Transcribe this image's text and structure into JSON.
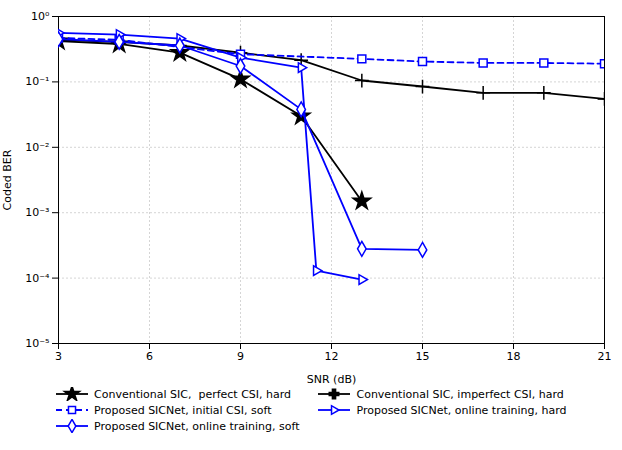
{
  "chart_data": {
    "type": "line",
    "xlabel": "SNR (dB)",
    "ylabel": "Coded BER",
    "log": "y",
    "xlim": [
      3,
      21
    ],
    "ylim": [
      1e-05,
      1.0
    ],
    "xticks": [
      3,
      6,
      9,
      12,
      15,
      18,
      21
    ],
    "yticks": [
      {
        "value": 1e-05,
        "label": "10⁻⁵"
      },
      {
        "value": 0.0001,
        "label": "10⁻⁴"
      },
      {
        "value": 0.001,
        "label": "10⁻³"
      },
      {
        "value": 0.01,
        "label": "10⁻²"
      },
      {
        "value": 0.1,
        "label": "10⁻¹"
      },
      {
        "value": 1.0,
        "label": "10⁰"
      }
    ],
    "grid": true,
    "legend": "lower left",
    "series": [
      {
        "name": "Conventional SIC,  perfect CSI, hard",
        "color": "black",
        "marker": "star",
        "line_style": "solid",
        "x": [
          3,
          5,
          7,
          9,
          11,
          13
        ],
        "values": [
          0.42,
          0.38,
          0.28,
          0.11,
          0.03,
          0.0015
        ]
      },
      {
        "name": "Conventional SIC, imperfect CSI, hard",
        "color": "black",
        "marker": "plus",
        "line_style": "solid",
        "x": [
          3,
          5,
          7,
          9,
          11,
          13,
          15,
          17,
          19,
          21
        ],
        "values": [
          0.44,
          0.41,
          0.36,
          0.28,
          0.215,
          0.105,
          0.085,
          0.068,
          0.068,
          0.055
        ]
      },
      {
        "name": "Proposed SICNet, initial CSI, soft",
        "color": "blue",
        "marker": "square-open",
        "line_style": "dashed",
        "x": [
          3,
          5,
          9,
          13,
          15,
          17,
          19,
          21
        ],
        "values": [
          0.47,
          0.44,
          0.265,
          0.225,
          0.205,
          0.195,
          0.195,
          0.19
        ]
      },
      {
        "name": "Proposed SICNet, online training, hard",
        "color": "blue",
        "marker": "triangle-right-open",
        "line_style": "solid",
        "x": [
          3,
          5,
          7,
          9,
          11,
          11.5,
          13
        ],
        "values": [
          0.56,
          0.53,
          0.46,
          0.235,
          0.165,
          0.00013,
          9.5e-05
        ]
      },
      {
        "name": "Proposed SICNet, online training, soft",
        "color": "blue",
        "marker": "diamond-open",
        "line_style": "solid",
        "x": [
          3,
          5,
          7,
          9,
          11,
          13,
          15
        ],
        "values": [
          0.45,
          0.41,
          0.36,
          0.175,
          0.038,
          0.00028,
          0.00027
        ]
      }
    ]
  }
}
